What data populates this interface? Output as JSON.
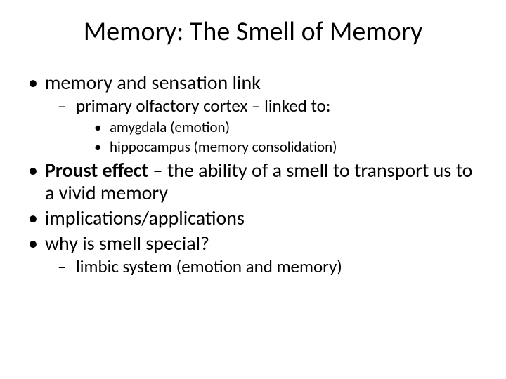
{
  "title": "Memory: The Smell of Memory",
  "bullets": {
    "b1": "memory and sensation link",
    "b1_1": "primary olfactory cortex – linked to:",
    "b1_1_1": "amygdala (emotion)",
    "b1_1_2": "hippocampus (memory consolidation)",
    "b2_bold": "Proust effect",
    "b2_rest": " – the ability of a smell to transport us to a vivid memory",
    "b3": "implications/applications",
    "b4": "why is smell special?",
    "b4_1": "limbic system (emotion and memory)"
  },
  "colors": {
    "background": "#ffffff",
    "text": "#000000"
  },
  "fonts": {
    "title_size_pt": 38,
    "lvl1_size_pt": 28,
    "lvl2_size_pt": 25,
    "lvl3_size_pt": 21,
    "family": "Calibri"
  }
}
